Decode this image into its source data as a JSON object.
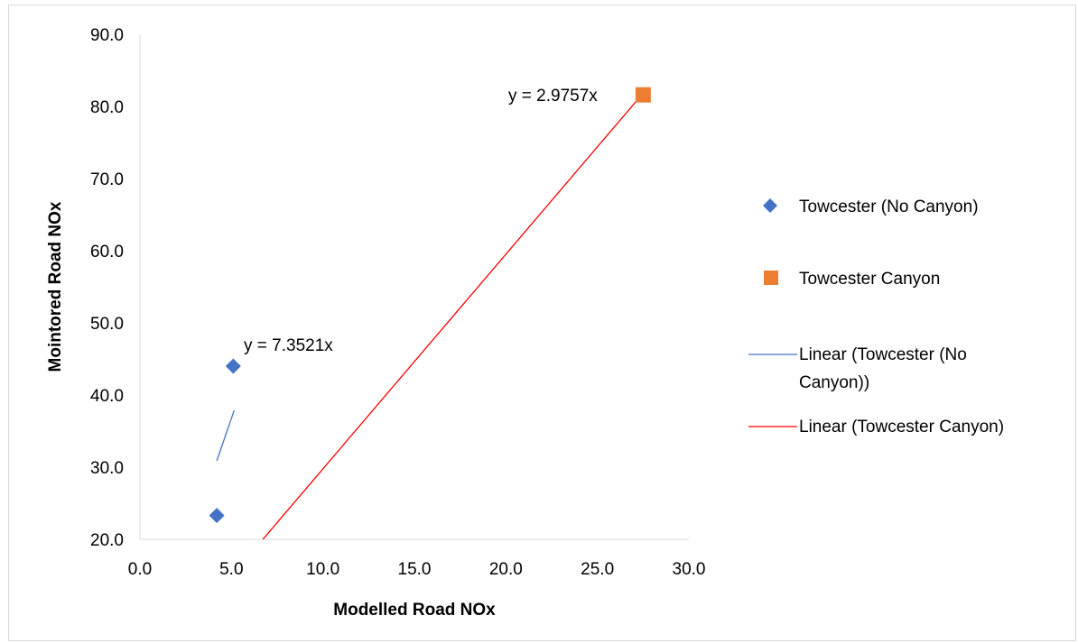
{
  "chart_data": {
    "type": "scatter",
    "xlabel": "Modelled Road NOx",
    "ylabel": "Mointored Road NOx",
    "xlim": [
      0,
      30
    ],
    "ylim": [
      20,
      90
    ],
    "x_ticks": [
      "0.0",
      "5.0",
      "10.0",
      "15.0",
      "20.0",
      "25.0",
      "30.0"
    ],
    "y_ticks": [
      "20.0",
      "30.0",
      "40.0",
      "50.0",
      "60.0",
      "70.0",
      "80.0",
      "90.0"
    ],
    "grid": false,
    "legend_position": "right",
    "series": [
      {
        "name": "Towcester (No Canyon)",
        "marker": "diamond",
        "color": "#4472c4",
        "points": [
          [
            4.2,
            23.3
          ],
          [
            5.1,
            44.0
          ]
        ]
      },
      {
        "name": "Towcester Canyon",
        "marker": "square",
        "color": "#ed7d31",
        "points": [
          [
            27.5,
            81.6
          ]
        ]
      }
    ],
    "trendlines": [
      {
        "name": "Linear (Towcester (No Canyon))",
        "legend_lines": [
          "Linear (Towcester (No",
          "Canyon))"
        ],
        "color": "#4472c4",
        "slope": 7.3521,
        "x_range": [
          4.2,
          5.15
        ],
        "equation": "y = 7.3521x"
      },
      {
        "name": "Linear (Towcester Canyon)",
        "legend_lines": [
          "Linear (Towcester Canyon)"
        ],
        "color": "#ff0000",
        "slope": 2.9757,
        "x_range": [
          6.72,
          27.5
        ],
        "equation": "y = 2.9757x"
      }
    ]
  }
}
